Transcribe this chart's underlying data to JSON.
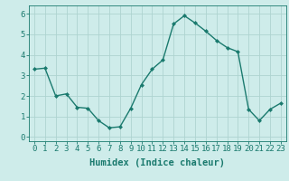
{
  "x": [
    0,
    1,
    2,
    3,
    4,
    5,
    6,
    7,
    8,
    9,
    10,
    11,
    12,
    13,
    14,
    15,
    16,
    17,
    18,
    19,
    20,
    21,
    22,
    23
  ],
  "y": [
    3.3,
    3.35,
    2.0,
    2.1,
    1.45,
    1.4,
    0.8,
    0.45,
    0.5,
    1.4,
    2.55,
    3.3,
    3.75,
    5.5,
    5.9,
    5.55,
    5.15,
    4.7,
    4.35,
    4.15,
    1.35,
    0.8,
    1.35,
    1.65
  ],
  "line_color": "#1a7a6e",
  "marker": "D",
  "marker_size": 2.0,
  "linewidth": 1.0,
  "bg_color": "#ceecea",
  "grid_color": "#aed4d0",
  "xlabel": "Humidex (Indice chaleur)",
  "xlabel_fontsize": 7.5,
  "tick_fontsize": 6.5,
  "ylim": [
    -0.2,
    6.4
  ],
  "xlim": [
    -0.5,
    23.5
  ],
  "yticks": [
    0,
    1,
    2,
    3,
    4,
    5,
    6
  ],
  "xticks": [
    0,
    1,
    2,
    3,
    4,
    5,
    6,
    7,
    8,
    9,
    10,
    11,
    12,
    13,
    14,
    15,
    16,
    17,
    18,
    19,
    20,
    21,
    22,
    23
  ]
}
